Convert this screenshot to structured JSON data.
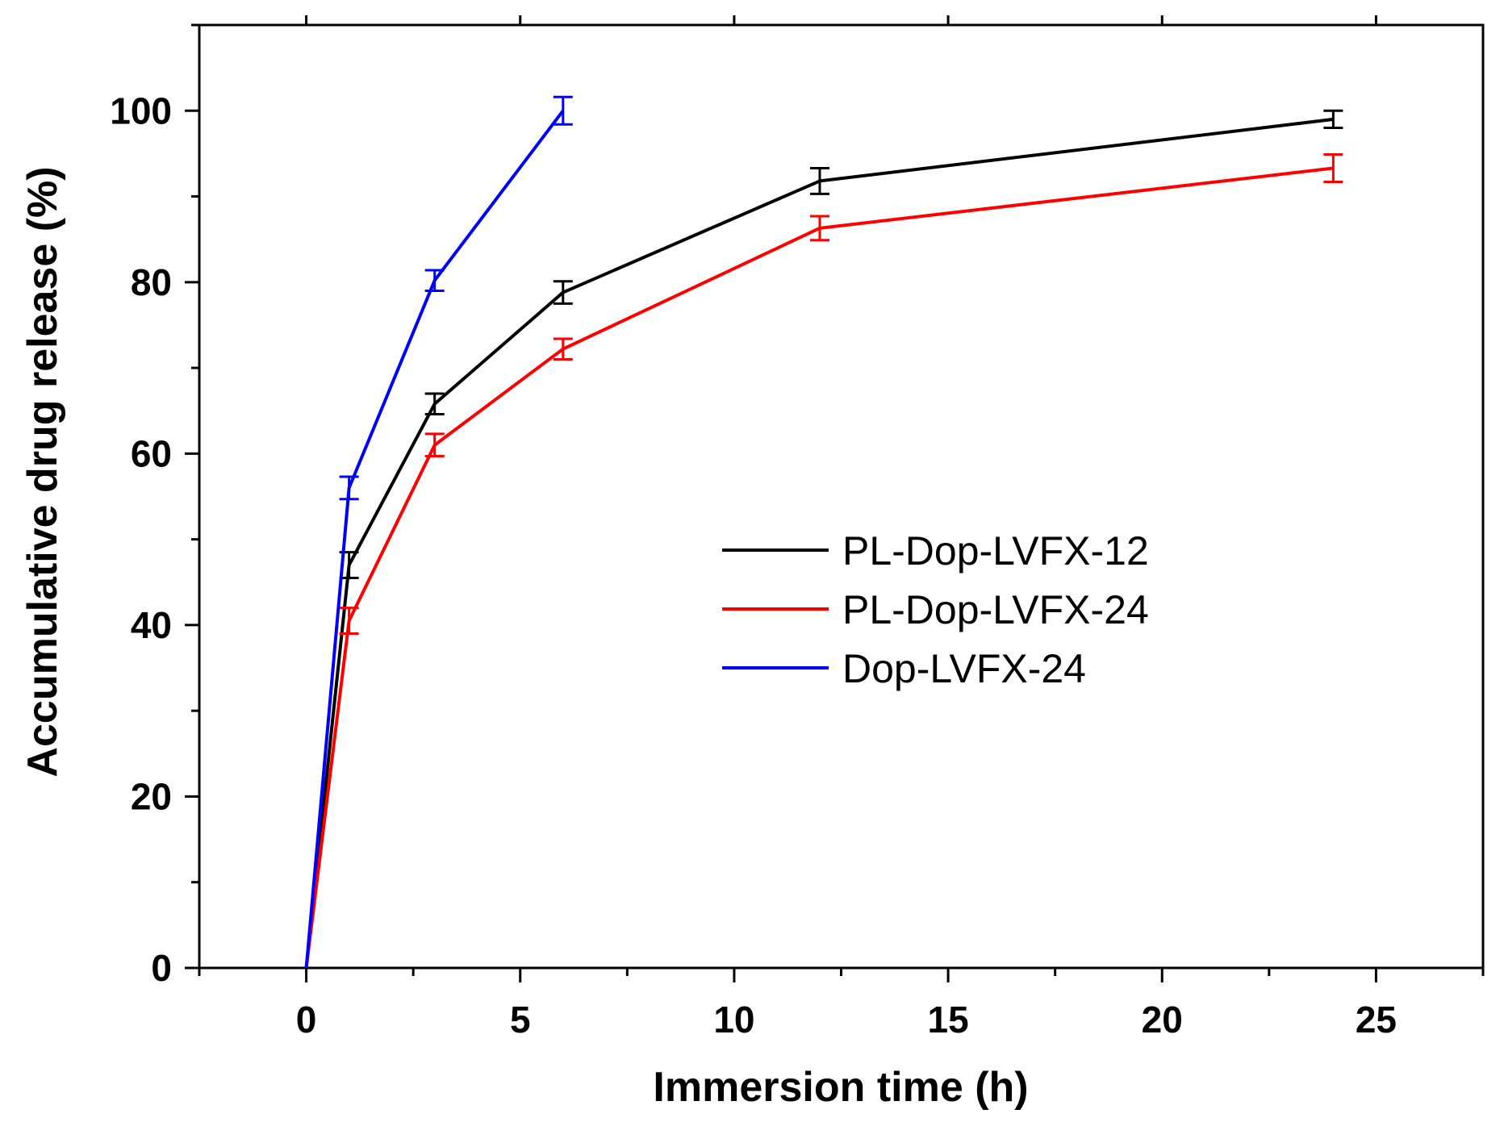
{
  "chart_data": {
    "type": "line",
    "title": "",
    "xlabel": "Immersion time (h)",
    "ylabel": "Accumulative drug release (%)",
    "xlim": [
      -2.5,
      27.5
    ],
    "ylim": [
      0,
      110
    ],
    "xticks": [
      0,
      5,
      10,
      15,
      20,
      25
    ],
    "xtick_labels": [
      "0",
      "5",
      "10",
      "15",
      "20",
      "25"
    ],
    "yticks": [
      0,
      20,
      40,
      60,
      80,
      100
    ],
    "ytick_labels": [
      "0",
      "20",
      "40",
      "60",
      "80",
      "100"
    ],
    "legend_position": "center-right",
    "series": [
      {
        "name": "PL-Dop-LVFX-12",
        "color": "#000000",
        "x": [
          0,
          1,
          3,
          6,
          12,
          24
        ],
        "y": [
          0,
          47,
          65.8,
          78.8,
          91.8,
          99
        ],
        "err": [
          0,
          1.5,
          1.2,
          1.3,
          1.5,
          1.0
        ]
      },
      {
        "name": "PL-Dop-LVFX-24",
        "color": "#ff0000",
        "x": [
          0,
          1,
          3,
          6,
          12,
          24
        ],
        "y": [
          0,
          40.5,
          61,
          72.2,
          86.3,
          93.3
        ],
        "err": [
          0,
          1.5,
          1.3,
          1.2,
          1.4,
          1.6
        ]
      },
      {
        "name": "Dop-LVFX-24",
        "color": "#0000ff",
        "x": [
          0,
          1,
          3,
          6
        ],
        "y": [
          0,
          56,
          80.2,
          100
        ],
        "err": [
          0,
          1.3,
          1.2,
          1.6
        ]
      }
    ]
  }
}
